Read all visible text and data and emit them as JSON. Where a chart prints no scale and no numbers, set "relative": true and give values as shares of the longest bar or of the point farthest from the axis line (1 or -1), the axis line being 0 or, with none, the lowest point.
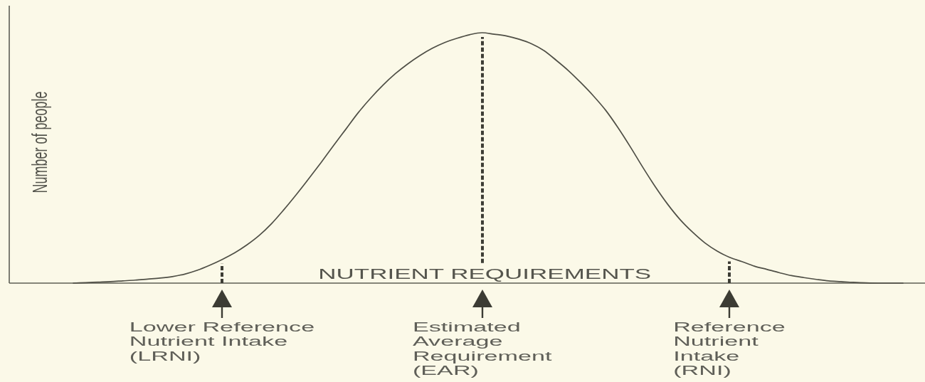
{
  "chart_data": {
    "type": "line",
    "xlabel": "NUTRIENT REQUIREMENTS",
    "ylabel": "Number of people",
    "relative": true,
    "categories": [
      null,
      null,
      null,
      null,
      null,
      null,
      null,
      null,
      null,
      null,
      null,
      null,
      null,
      null,
      null,
      null,
      null,
      null,
      null,
      null,
      null,
      null,
      null,
      null,
      null,
      null,
      null,
      null,
      null,
      null,
      null,
      null,
      null,
      null,
      null,
      null,
      null,
      null,
      null,
      null,
      null,
      null,
      null,
      null,
      null,
      null,
      null,
      null,
      null,
      null,
      null,
      null,
      null,
      null,
      null,
      null,
      null,
      null,
      null,
      null,
      null,
      null,
      null,
      null,
      null,
      null,
      null,
      null
    ],
    "series": [
      {
        "color": "#4f4f46",
        "values": [
          0,
          0.002,
          0.004,
          0.006,
          0.009,
          0.012,
          0.016,
          0.02,
          0.026,
          0.036,
          0.051,
          0.071,
          0.094,
          0.12,
          0.152,
          0.19,
          0.237,
          0.293,
          0.353,
          0.416,
          0.481,
          0.548,
          0.614,
          0.68,
          0.738,
          0.79,
          0.836,
          0.875,
          0.909,
          0.938,
          0.961,
          0.978,
          0.992,
          1.0,
          0.994,
          0.987,
          0.974,
          0.956,
          0.929,
          0.89,
          0.848,
          0.8,
          0.748,
          0.69,
          0.62,
          0.543,
          0.462,
          0.385,
          0.315,
          0.254,
          0.204,
          0.161,
          0.128,
          0.103,
          0.086,
          0.068,
          0.055,
          0.042,
          0.03,
          0.022,
          0.015,
          0.009,
          0.006,
          0.003,
          0.001,
          0,
          0,
          0
        ]
      }
    ],
    "annotations": [
      "Lower Reference\nNutrient Intake\n(LRNI)",
      "Estimated\nAverage\nRequirement\n(EAR)",
      "Reference\nNutrient\nIntake\n(RNI)"
    ]
  }
}
